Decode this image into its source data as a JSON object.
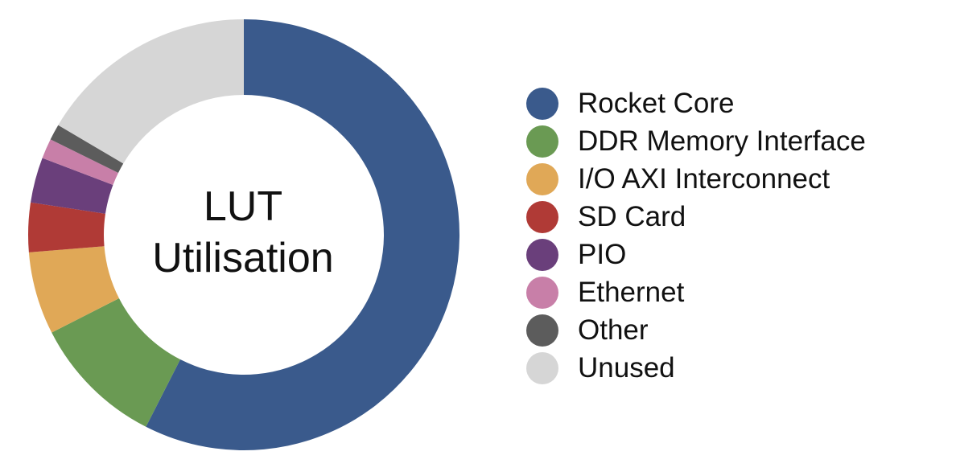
{
  "chart_data": {
    "type": "pie",
    "title": "LUT Utilisation",
    "title_lines": [
      "LUT",
      "Utilisation"
    ],
    "legend_position": "right",
    "donut": true,
    "series": [
      {
        "name": "Rocket Core",
        "value": 57.5,
        "color": "#3a5a8c"
      },
      {
        "name": "DDR Memory Interface",
        "value": 10.0,
        "color": "#6a9a53"
      },
      {
        "name": "I/O AXI Interconnect",
        "value": 6.2,
        "color": "#e0a857"
      },
      {
        "name": "SD Card",
        "value": 3.7,
        "color": "#b03a36"
      },
      {
        "name": "PIO",
        "value": 3.4,
        "color": "#6a3f7b"
      },
      {
        "name": "Ethernet",
        "value": 1.5,
        "color": "#c87fa8"
      },
      {
        "name": "Other",
        "value": 1.2,
        "color": "#5c5c5c"
      },
      {
        "name": "Unused",
        "value": 16.5,
        "color": "#d6d6d6"
      }
    ]
  }
}
